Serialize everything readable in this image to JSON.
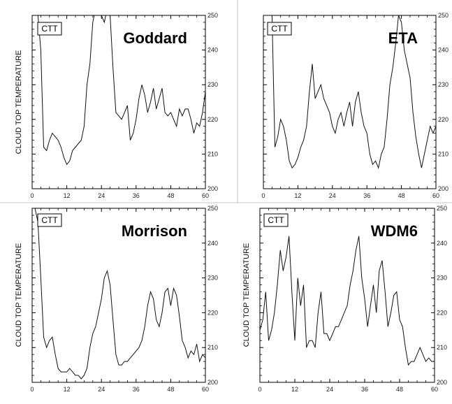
{
  "chart_data": [
    {
      "type": "line",
      "title": "Goddard",
      "badge": "CTT",
      "ylabel": "CLOUD TOP TEMPERATURE",
      "xlim": [
        0,
        60
      ],
      "ylim": [
        200,
        250
      ],
      "xticks": [
        0,
        12,
        24,
        36,
        48,
        60
      ],
      "yticks": [
        200,
        210,
        220,
        230,
        240,
        250
      ],
      "xtick_labels": [
        "0",
        "12",
        "24",
        "36",
        "48",
        "60"
      ],
      "ytick_labels": [
        "200",
        "210",
        "220",
        "230",
        "240",
        "250"
      ],
      "x": [
        0,
        1,
        2,
        3,
        4,
        5,
        6,
        7,
        8,
        9,
        10,
        11,
        12,
        13,
        14,
        15,
        16,
        17,
        18,
        19,
        20,
        21,
        22,
        23,
        24,
        25,
        26,
        27,
        28,
        29,
        30,
        31,
        32,
        33,
        34,
        35,
        36,
        37,
        38,
        39,
        40,
        41,
        42,
        43,
        44,
        45,
        46,
        47,
        48,
        49,
        50,
        51,
        52,
        53,
        54,
        55,
        56,
        57,
        58,
        59,
        60
      ],
      "y": [
        250,
        250,
        250,
        240,
        212,
        211,
        214,
        216,
        215,
        214,
        212,
        209,
        207,
        208,
        211,
        212,
        213,
        214,
        218,
        230,
        236,
        248,
        252,
        251,
        250,
        248,
        252,
        250,
        235,
        222,
        221,
        220,
        222,
        224,
        214,
        216,
        220,
        226,
        230,
        227,
        222,
        225,
        229,
        223,
        226,
        229,
        222,
        221,
        222,
        220,
        218,
        223,
        221,
        223,
        223,
        220,
        216,
        219,
        218,
        222,
        228
      ]
    },
    {
      "type": "line",
      "title": "ETA",
      "badge": "CTT",
      "ylabel": "",
      "xlim": [
        0,
        60
      ],
      "ylim": [
        200,
        250
      ],
      "xticks": [
        0,
        12,
        24,
        36,
        48,
        60
      ],
      "yticks": [
        200,
        210,
        220,
        230,
        240,
        250
      ],
      "xtick_labels": [
        "0",
        "12",
        "24",
        "36",
        "48",
        "60"
      ],
      "ytick_labels": [
        "200",
        "210",
        "220",
        "230",
        "240",
        "250"
      ],
      "x": [
        0,
        1,
        2,
        3,
        4,
        5,
        6,
        7,
        8,
        9,
        10,
        11,
        12,
        13,
        14,
        15,
        16,
        17,
        18,
        19,
        20,
        21,
        22,
        23,
        24,
        25,
        26,
        27,
        28,
        29,
        30,
        31,
        32,
        33,
        34,
        35,
        36,
        37,
        38,
        39,
        40,
        41,
        42,
        43,
        44,
        45,
        46,
        47,
        48,
        49,
        50,
        51,
        52,
        53,
        54,
        55,
        56,
        57,
        58,
        59,
        60
      ],
      "y": [
        250,
        250,
        250,
        250,
        212,
        215,
        220,
        218,
        214,
        208,
        206,
        207,
        209,
        212,
        214,
        218,
        228,
        236,
        226,
        228,
        230,
        226,
        224,
        222,
        218,
        216,
        220,
        222,
        218,
        222,
        225,
        218,
        225,
        228,
        222,
        218,
        216,
        210,
        207,
        208,
        206,
        210,
        212,
        220,
        230,
        235,
        242,
        250,
        248,
        240,
        236,
        232,
        222,
        215,
        210,
        206,
        210,
        214,
        218,
        216,
        218
      ]
    },
    {
      "type": "line",
      "title": "Morrison",
      "badge": "CTT",
      "ylabel": "CLOUD TOP TEMPERATURE",
      "xlim": [
        0,
        60
      ],
      "ylim": [
        200,
        250
      ],
      "xticks": [
        0,
        12,
        24,
        36,
        48,
        60
      ],
      "yticks": [
        200,
        210,
        220,
        230,
        240,
        250
      ],
      "xtick_labels": [
        "0",
        "12",
        "24",
        "36",
        "48",
        "60"
      ],
      "ytick_labels": [
        "200",
        "210",
        "220",
        "230",
        "240",
        "250"
      ],
      "x": [
        0,
        1,
        2,
        3,
        4,
        5,
        6,
        7,
        8,
        9,
        10,
        11,
        12,
        13,
        14,
        15,
        16,
        17,
        18,
        19,
        20,
        21,
        22,
        23,
        24,
        25,
        26,
        27,
        28,
        29,
        30,
        31,
        32,
        33,
        34,
        35,
        36,
        37,
        38,
        39,
        40,
        41,
        42,
        43,
        44,
        45,
        46,
        47,
        48,
        49,
        50,
        51,
        52,
        53,
        54,
        55,
        56,
        57,
        58,
        59,
        60
      ],
      "y": [
        250,
        250,
        246,
        230,
        213,
        210,
        212,
        213,
        208,
        204,
        203,
        203,
        203,
        204,
        203,
        202,
        202,
        201,
        202,
        204,
        210,
        214,
        216,
        220,
        224,
        230,
        232,
        228,
        218,
        208,
        205,
        205,
        206,
        206,
        207,
        208,
        209,
        210,
        212,
        216,
        222,
        226,
        224,
        218,
        216,
        220,
        226,
        227,
        222,
        227,
        225,
        219,
        212,
        210,
        207,
        209,
        208,
        211,
        206,
        208,
        207
      ]
    },
    {
      "type": "line",
      "title": "WDM6",
      "badge": "CTT",
      "ylabel": "CLOUD TOP TEMPERATURE",
      "xlim": [
        0,
        60
      ],
      "ylim": [
        200,
        250
      ],
      "xticks": [
        0,
        12,
        24,
        36,
        48,
        60
      ],
      "yticks": [
        200,
        210,
        220,
        230,
        240,
        250
      ],
      "xtick_labels": [
        "0",
        "12",
        "24",
        "36",
        "48",
        "60"
      ],
      "ytick_labels": [
        "200",
        "210",
        "220",
        "230",
        "240",
        "250"
      ],
      "x": [
        0,
        1,
        2,
        3,
        4,
        5,
        6,
        7,
        8,
        9,
        10,
        11,
        12,
        13,
        14,
        15,
        16,
        17,
        18,
        19,
        20,
        21,
        22,
        23,
        24,
        25,
        26,
        27,
        28,
        29,
        30,
        31,
        32,
        33,
        34,
        35,
        36,
        37,
        38,
        39,
        40,
        41,
        42,
        43,
        44,
        45,
        46,
        47,
        48,
        49,
        50,
        51,
        52,
        53,
        54,
        55,
        56,
        57,
        58,
        59,
        60
      ],
      "y": [
        215,
        218,
        226,
        212,
        215,
        220,
        228,
        238,
        232,
        236,
        242,
        226,
        212,
        230,
        222,
        228,
        210,
        212,
        212,
        210,
        220,
        226,
        214,
        214,
        212,
        214,
        216,
        216,
        218,
        220,
        222,
        228,
        232,
        238,
        242,
        230,
        224,
        216,
        222,
        228,
        220,
        232,
        235,
        226,
        216,
        220,
        225,
        226,
        218,
        216,
        210,
        205,
        206,
        206,
        208,
        210,
        208,
        206,
        207,
        206,
        206
      ]
    }
  ]
}
